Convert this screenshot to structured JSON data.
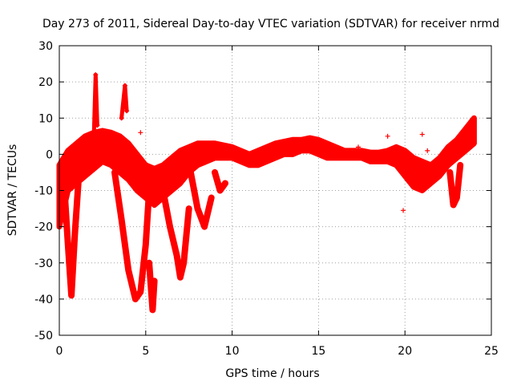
{
  "chart_data": {
    "type": "scatter",
    "title": "Day 273 of 2011, Sidereal Day-to-day VTEC variation (SDTVAR) for receiver nrmd",
    "xlabel": "GPS time / hours",
    "ylabel": "SDTVAR / TECUs",
    "xlim": [
      0,
      25
    ],
    "ylim": [
      -50,
      30
    ],
    "grid": true,
    "marker": "plus",
    "series_color": "#ff0000",
    "x_ticks": [
      "0",
      "5",
      "10",
      "15",
      "20",
      "25"
    ],
    "y_ticks": [
      "30",
      "20",
      "10",
      "0",
      "-10",
      "-20",
      "-30",
      "-40",
      "-50"
    ],
    "series": [
      {
        "name": "main_upper",
        "x": [
          0.0,
          0.5,
          1.0,
          1.5,
          2.0,
          2.5,
          3.0,
          3.5,
          4.0,
          4.5,
          5.0,
          5.5,
          6.0,
          6.5,
          7.0,
          7.5,
          8.0,
          8.5,
          9.0,
          9.5,
          10.0,
          10.5,
          11.0,
          11.5,
          12.0,
          12.5,
          13.0,
          13.5,
          14.0,
          14.5,
          15.0,
          15.5,
          16.0,
          16.5,
          17.0,
          17.5,
          18.0,
          18.5,
          19.0,
          19.5,
          20.0,
          20.5,
          21.0,
          21.5,
          22.0,
          22.5,
          23.0,
          23.5,
          24.0
        ],
        "y": [
          -3,
          1,
          3,
          5,
          6,
          6.5,
          6,
          5,
          3,
          0,
          -3,
          -4,
          -3,
          -1,
          1,
          2,
          3,
          3,
          3,
          2.5,
          2,
          1,
          0,
          1,
          2,
          3,
          3.5,
          4,
          4,
          4.5,
          4,
          3,
          2,
          1,
          1,
          1,
          0.5,
          0.5,
          1,
          2,
          1,
          -1,
          -2,
          -3,
          -1,
          2,
          4,
          7,
          10
        ]
      },
      {
        "name": "main_lower",
        "x": [
          0.0,
          0.5,
          1.0,
          1.5,
          2.0,
          2.5,
          3.0,
          3.5,
          4.0,
          4.5,
          5.0,
          5.5,
          6.0,
          6.5,
          7.0,
          7.5,
          8.0,
          8.5,
          9.0,
          9.5,
          10.0,
          10.5,
          11.0,
          11.5,
          12.0,
          12.5,
          13.0,
          13.5,
          14.0,
          14.5,
          15.0,
          15.5,
          16.0,
          16.5,
          17.0,
          17.5,
          18.0,
          18.5,
          19.0,
          19.5,
          20.0,
          20.5,
          21.0,
          21.5,
          22.0,
          22.5,
          23.0,
          23.5,
          24.0
        ],
        "y": [
          -20,
          -10,
          -8,
          -6,
          -4,
          -2,
          -3,
          -5,
          -7,
          -10,
          -12,
          -14,
          -12,
          -10,
          -8,
          -5,
          -3,
          -2,
          -1,
          -1,
          -1,
          -2,
          -3,
          -3,
          -2,
          -1,
          0,
          0,
          1,
          1,
          0,
          -1,
          -1,
          -1,
          -1,
          -1,
          -2,
          -2,
          -2,
          -3,
          -6,
          -9,
          -10,
          -8,
          -6,
          -3,
          -1,
          1,
          3
        ]
      },
      {
        "name": "dip_1",
        "x": [
          0.3,
          0.5,
          0.7,
          0.9,
          1.1
        ],
        "y": [
          -10,
          -25,
          -39,
          -22,
          -8
        ]
      },
      {
        "name": "dip_2",
        "x": [
          3.2,
          3.6,
          4.0,
          4.4,
          4.7,
          5.0,
          5.2
        ],
        "y": [
          -5,
          -18,
          -32,
          -40,
          -38,
          -25,
          -10
        ]
      },
      {
        "name": "dip_3",
        "x": [
          6.0,
          6.4,
          6.8,
          7.0,
          7.2,
          7.5
        ],
        "y": [
          -10,
          -20,
          -28,
          -34,
          -30,
          -15
        ]
      },
      {
        "name": "dip_4",
        "x": [
          7.6,
          8.0,
          8.4,
          8.8
        ],
        "y": [
          -5,
          -15,
          -20,
          -12
        ]
      },
      {
        "name": "dip_5",
        "x": [
          9.0,
          9.3,
          9.6
        ],
        "y": [
          -5,
          -10,
          -8
        ]
      },
      {
        "name": "spike_1",
        "x": [
          2.0,
          2.1,
          2.2
        ],
        "y": [
          5,
          22,
          8
        ]
      },
      {
        "name": "spike_2",
        "x": [
          3.6,
          3.8,
          3.9
        ],
        "y": [
          10,
          19,
          12
        ]
      },
      {
        "name": "drop_5h",
        "x": [
          5.2,
          5.4,
          5.5
        ],
        "y": [
          -30,
          -43,
          -35
        ]
      },
      {
        "name": "dip_late",
        "x": [
          22.6,
          22.8,
          23.0,
          23.2
        ],
        "y": [
          -5,
          -14,
          -12,
          -3
        ]
      },
      {
        "name": "outliers",
        "x": [
          4.7,
          19.0,
          21.0,
          19.9,
          21.3,
          17.3
        ],
        "y": [
          6,
          5,
          5.5,
          -15.5,
          1,
          2
        ]
      }
    ]
  }
}
